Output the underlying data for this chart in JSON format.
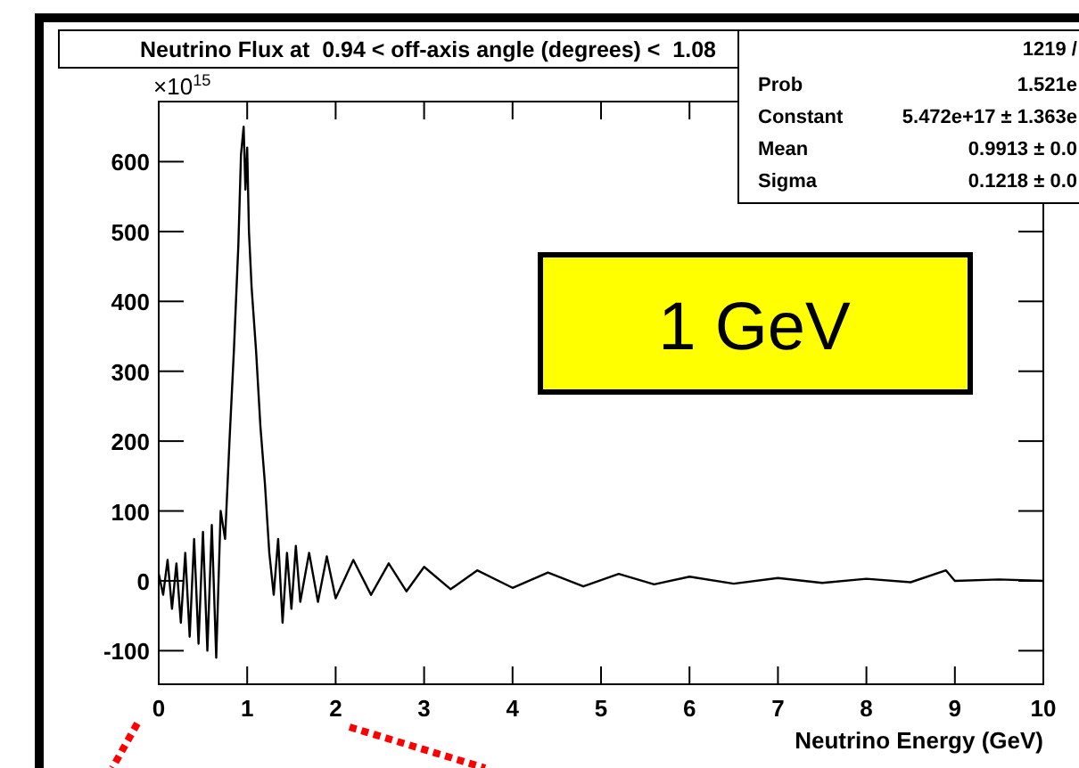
{
  "chart_data": {
    "type": "line",
    "title": "Neutrino Flux at  0.94 < off-axis angle (degrees) <  1.08",
    "xlabel": "Neutrino Energy (GeV)",
    "ylabel": "×10$^{15}$",
    "xlim": [
      0,
      10
    ],
    "xticks": [
      0,
      1,
      2,
      3,
      4,
      5,
      6,
      7,
      8,
      9,
      10
    ],
    "ylim": [
      -148,
      686
    ],
    "yticks": [
      -100,
      0,
      100,
      200,
      300,
      400,
      500,
      600
    ],
    "grid": false,
    "marker": "none",
    "line_style": "solid",
    "series": [
      {
        "color": "#000000",
        "x": [
          0,
          0.05,
          0.1,
          0.15,
          0.2,
          0.25,
          0.3,
          0.35,
          0.4,
          0.45,
          0.5,
          0.55,
          0.6,
          0.65,
          0.7,
          0.75,
          0.8,
          0.85,
          0.9,
          0.93,
          0.96,
          0.98,
          1.0,
          1.02,
          1.05,
          1.1,
          1.15,
          1.2,
          1.25,
          1.3,
          1.35,
          1.4,
          1.45,
          1.5,
          1.55,
          1.6,
          1.7,
          1.8,
          1.9,
          2.0,
          2.2,
          2.4,
          2.6,
          2.8,
          3.0,
          3.3,
          3.6,
          4.0,
          4.4,
          4.8,
          5.2,
          5.6,
          6.0,
          6.5,
          7.0,
          7.5,
          8.0,
          8.5,
          8.9,
          9.0,
          9.5,
          10
        ],
        "values": [
          10,
          -20,
          30,
          -40,
          25,
          -60,
          40,
          -80,
          60,
          -90,
          70,
          -100,
          80,
          -110,
          100,
          60,
          200,
          330,
          480,
          610,
          650,
          560,
          620,
          500,
          420,
          330,
          220,
          140,
          40,
          -20,
          60,
          -60,
          40,
          -40,
          50,
          -30,
          40,
          -30,
          35,
          -25,
          30,
          -20,
          25,
          -15,
          20,
          -12,
          15,
          -10,
          12,
          -8,
          10,
          -5,
          6,
          -4,
          4,
          -3,
          3,
          -2,
          15,
          0,
          2,
          0
        ]
      }
    ],
    "annotations": [
      "1 GeV",
      "1219 /",
      "Prob",
      "1.521e",
      "Constant",
      "5.472e+17 ± 1.363e",
      "Mean",
      "0.9913 ± 0.0",
      "Sigma",
      "0.1218 ± 0.0"
    ]
  }
}
